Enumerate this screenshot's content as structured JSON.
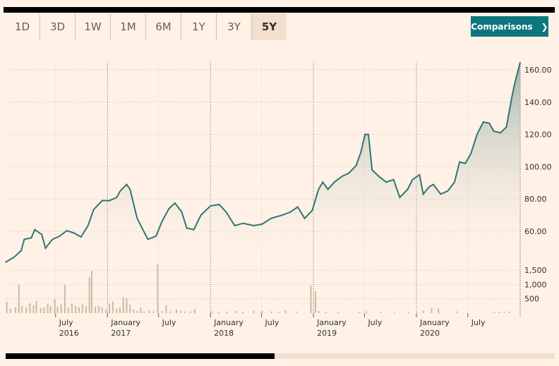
{
  "tabs": [
    {
      "label": "1D"
    },
    {
      "label": "3D"
    },
    {
      "label": "1W"
    },
    {
      "label": "1M"
    },
    {
      "label": "6M"
    },
    {
      "label": "1Y"
    },
    {
      "label": "3Y"
    },
    {
      "label": "5Y",
      "active": true
    }
  ],
  "comparisons": {
    "label": "Comparisons",
    "icon": "chevron-right-icon",
    "glyph": "❯",
    "color": "#0d7680"
  },
  "chart_data": {
    "type": "area",
    "colors": {
      "line": "#2e7576",
      "fill": "#8fa9a1",
      "volume": "#cdb9a8"
    },
    "price_axis": {
      "ticks": [
        "60.00",
        "80.00",
        "100.00",
        "120.00",
        "140.00",
        "160.00"
      ],
      "range": [
        60,
        160
      ],
      "position": "right"
    },
    "volume_axis": {
      "ticks": [
        "500",
        "1,000",
        "1,500"
      ]
    },
    "x_ticks": [
      {
        "date": "2016-07-01",
        "month": "July",
        "year": "2016"
      },
      {
        "date": "2017-01-01",
        "month": "January",
        "year": "2017"
      },
      {
        "date": "2017-07-01",
        "month": "July",
        "year": ""
      },
      {
        "date": "2018-01-01",
        "month": "January",
        "year": "2018"
      },
      {
        "date": "2018-07-01",
        "month": "July",
        "year": ""
      },
      {
        "date": "2019-01-01",
        "month": "January",
        "year": "2019"
      },
      {
        "date": "2019-07-01",
        "month": "July",
        "year": ""
      },
      {
        "date": "2020-01-01",
        "month": "January",
        "year": "2020"
      },
      {
        "date": "2020-07-01",
        "month": "July",
        "year": ""
      }
    ],
    "grid": true,
    "price": [
      [
        "2016-01-05",
        40.8
      ],
      [
        "2016-02-05",
        44
      ],
      [
        "2016-03-01",
        48
      ],
      [
        "2016-03-12",
        55
      ],
      [
        "2016-04-06",
        56
      ],
      [
        "2016-04-18",
        61
      ],
      [
        "2016-05-13",
        58
      ],
      [
        "2016-05-26",
        49.5
      ],
      [
        "2016-06-20",
        55
      ],
      [
        "2016-07-15",
        57
      ],
      [
        "2016-08-10",
        60.4
      ],
      [
        "2016-09-04",
        59
      ],
      [
        "2016-09-29",
        56.5
      ],
      [
        "2016-10-24",
        63.5
      ],
      [
        "2016-11-13",
        73.5
      ],
      [
        "2016-12-13",
        79
      ],
      [
        "2017-01-08",
        79
      ],
      [
        "2017-02-03",
        81
      ],
      [
        "2017-02-15",
        85
      ],
      [
        "2017-03-10",
        89
      ],
      [
        "2017-03-22",
        86
      ],
      [
        "2017-04-16",
        68
      ],
      [
        "2017-05-24",
        55
      ],
      [
        "2017-06-22",
        57
      ],
      [
        "2017-07-13",
        66
      ],
      [
        "2017-08-07",
        74
      ],
      [
        "2017-08-28",
        77.5
      ],
      [
        "2017-09-21",
        72
      ],
      [
        "2017-10-09",
        62
      ],
      [
        "2017-11-03",
        61
      ],
      [
        "2017-11-28",
        70
      ],
      [
        "2018-01-01",
        75.7
      ],
      [
        "2018-02-01",
        76.6
      ],
      [
        "2018-02-25",
        72
      ],
      [
        "2018-03-28",
        63.5
      ],
      [
        "2018-04-27",
        65
      ],
      [
        "2018-06-03",
        63.5
      ],
      [
        "2018-07-03",
        64.4
      ],
      [
        "2018-08-04",
        68
      ],
      [
        "2018-09-12",
        70
      ],
      [
        "2018-10-12",
        72
      ],
      [
        "2018-11-06",
        75
      ],
      [
        "2018-12-01",
        68
      ],
      [
        "2018-12-28",
        73
      ],
      [
        "2019-01-19",
        86
      ],
      [
        "2019-02-03",
        90.5
      ],
      [
        "2019-02-21",
        86
      ],
      [
        "2019-03-16",
        90.5
      ],
      [
        "2019-04-12",
        94
      ],
      [
        "2019-05-06",
        96
      ],
      [
        "2019-06-01",
        100.6
      ],
      [
        "2019-06-18",
        109
      ],
      [
        "2019-07-03",
        120
      ],
      [
        "2019-07-15",
        120
      ],
      [
        "2019-07-28",
        98
      ],
      [
        "2019-08-21",
        94
      ],
      [
        "2019-09-16",
        90.5
      ],
      [
        "2019-10-12",
        92
      ],
      [
        "2019-11-03",
        81
      ],
      [
        "2019-12-01",
        86
      ],
      [
        "2019-12-18",
        92
      ],
      [
        "2020-01-12",
        95
      ],
      [
        "2020-01-25",
        83
      ],
      [
        "2020-02-15",
        87.5
      ],
      [
        "2020-03-01",
        89
      ],
      [
        "2020-03-27",
        83
      ],
      [
        "2020-04-21",
        85
      ],
      [
        "2020-05-15",
        90.5
      ],
      [
        "2020-06-02",
        103
      ],
      [
        "2020-06-22",
        102
      ],
      [
        "2020-07-12",
        108
      ],
      [
        "2020-08-03",
        120
      ],
      [
        "2020-08-25",
        127.7
      ],
      [
        "2020-09-15",
        127
      ],
      [
        "2020-10-01",
        122
      ],
      [
        "2020-10-25",
        121
      ],
      [
        "2020-11-15",
        124.6
      ],
      [
        "2020-12-03",
        142
      ],
      [
        "2020-12-15",
        152
      ],
      [
        "2021-01-03",
        164.8
      ]
    ],
    "volume": [
      [
        "2016-01-10",
        400
      ],
      [
        "2016-01-23",
        150
      ],
      [
        "2016-02-10",
        200
      ],
      [
        "2016-02-22",
        1000
      ],
      [
        "2016-03-04",
        250
      ],
      [
        "2016-03-19",
        200
      ],
      [
        "2016-04-01",
        350
      ],
      [
        "2016-04-14",
        280
      ],
      [
        "2016-04-24",
        420
      ],
      [
        "2016-05-09",
        180
      ],
      [
        "2016-05-21",
        200
      ],
      [
        "2016-06-03",
        330
      ],
      [
        "2016-06-13",
        250
      ],
      [
        "2016-06-28",
        500
      ],
      [
        "2016-07-08",
        220
      ],
      [
        "2016-07-21",
        300
      ],
      [
        "2016-08-03",
        1000
      ],
      [
        "2016-08-15",
        200
      ],
      [
        "2016-08-28",
        330
      ],
      [
        "2016-09-10",
        250
      ],
      [
        "2016-09-22",
        200
      ],
      [
        "2016-10-04",
        330
      ],
      [
        "2016-10-17",
        250
      ],
      [
        "2016-10-29",
        1250
      ],
      [
        "2016-11-06",
        1480
      ],
      [
        "2016-11-19",
        220
      ],
      [
        "2016-12-01",
        250
      ],
      [
        "2016-12-13",
        200
      ],
      [
        "2016-12-26",
        120
      ],
      [
        "2017-01-08",
        330
      ],
      [
        "2017-01-20",
        400
      ],
      [
        "2017-02-02",
        150
      ],
      [
        "2017-02-14",
        200
      ],
      [
        "2017-02-26",
        540
      ],
      [
        "2017-03-10",
        530
      ],
      [
        "2017-03-22",
        300
      ],
      [
        "2017-04-04",
        130
      ],
      [
        "2017-04-16",
        80
      ],
      [
        "2017-04-29",
        200
      ],
      [
        "2017-05-11",
        60
      ],
      [
        "2017-05-29",
        100
      ],
      [
        "2017-06-13",
        60
      ],
      [
        "2017-06-28",
        1700
      ],
      [
        "2017-07-13",
        80
      ],
      [
        "2017-07-28",
        280
      ],
      [
        "2017-08-12",
        60
      ],
      [
        "2017-09-02",
        130
      ],
      [
        "2017-09-17",
        80
      ],
      [
        "2017-10-02",
        60
      ],
      [
        "2017-10-22",
        50
      ],
      [
        "2017-11-06",
        140
      ],
      [
        "2018-01-05",
        60
      ],
      [
        "2018-01-30",
        40
      ],
      [
        "2018-02-28",
        60
      ],
      [
        "2018-04-01",
        70
      ],
      [
        "2018-04-26",
        50
      ],
      [
        "2018-06-03",
        80
      ],
      [
        "2018-07-03",
        80
      ],
      [
        "2018-08-04",
        60
      ],
      [
        "2018-08-30",
        50
      ],
      [
        "2018-09-24",
        100
      ],
      [
        "2018-11-01",
        60
      ],
      [
        "2018-12-23",
        960
      ],
      [
        "2019-01-08",
        760
      ],
      [
        "2019-01-20",
        80
      ],
      [
        "2019-02-14",
        50
      ],
      [
        "2019-03-30",
        40
      ],
      [
        "2019-06-13",
        50
      ],
      [
        "2019-07-08",
        60
      ],
      [
        "2019-08-27",
        40
      ],
      [
        "2019-10-16",
        30
      ],
      [
        "2019-12-05",
        40
      ],
      [
        "2020-01-25",
        90
      ],
      [
        "2020-02-24",
        180
      ],
      [
        "2020-03-19",
        160
      ],
      [
        "2020-05-23",
        60
      ],
      [
        "2020-10-02",
        40
      ],
      [
        "2020-10-21",
        50
      ],
      [
        "2020-11-08",
        40
      ],
      [
        "2020-11-25",
        60
      ]
    ]
  }
}
